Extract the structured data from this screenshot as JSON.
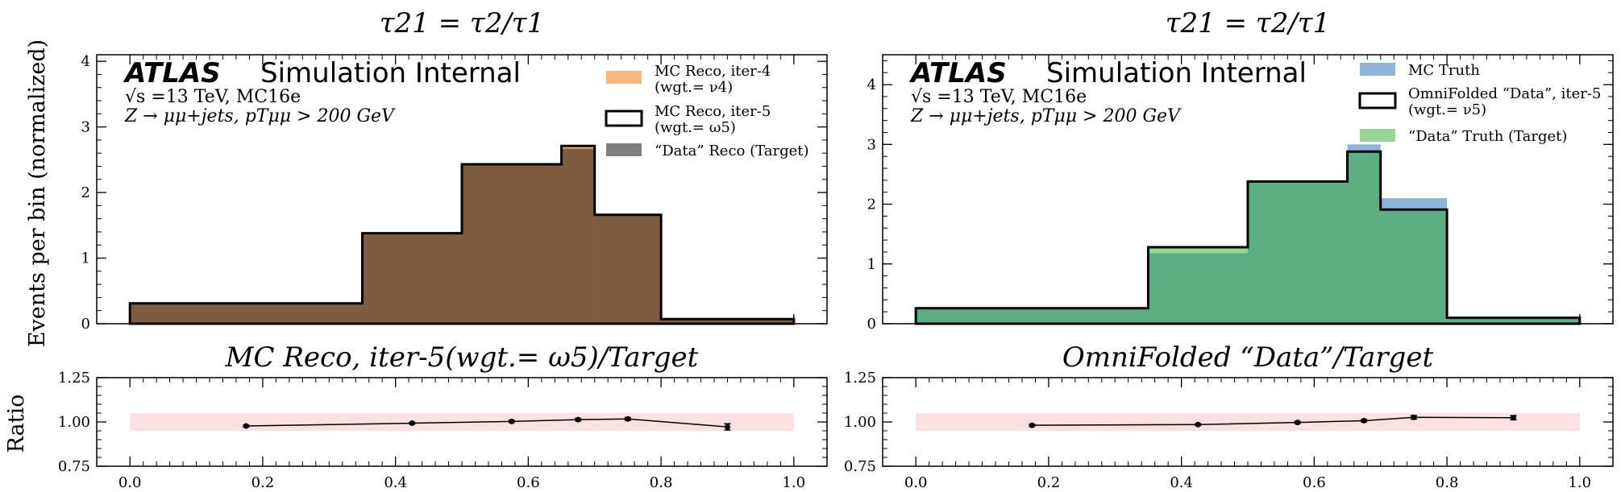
{
  "figure": {
    "ylabel_main": "Events per bin (normalized)",
    "ylabel_ratio": "Ratio"
  },
  "chart_data": [
    {
      "panel": "left-main",
      "type": "histogram",
      "title": "τ21 = τ2/τ1",
      "ylim": [
        0,
        4.1
      ],
      "yticks": [
        "0",
        "1",
        "2",
        "3",
        "4"
      ],
      "xlim": [
        -0.05,
        1.05
      ],
      "atlas": {
        "logo": "ATLAS",
        "label": "Simulation Internal",
        "line1": "√s =13 TeV, MC16e",
        "line2": "Z → μμ+jets, pTμμ > 200 GeV"
      },
      "bin_edges": [
        0.0,
        0.35,
        0.5,
        0.65,
        0.7,
        0.8,
        1.0
      ],
      "series": [
        {
          "name": "MC Reco, iter-4",
          "sub": "(wgt.= ν4)",
          "style": "fill",
          "color": "#f5b97e",
          "values": [
            0.31,
            1.38,
            2.43,
            2.71,
            1.66,
            0.07
          ]
        },
        {
          "name": "MC Reco, iter-5",
          "sub": "(wgt.= ω5)",
          "style": "step",
          "color": "#000000",
          "values": [
            0.31,
            1.38,
            2.43,
            2.71,
            1.66,
            0.07
          ]
        },
        {
          "name": "“Data” Reco (Target)",
          "sub": "",
          "style": "fill",
          "color": "#7f7f7f",
          "values": [
            0.31,
            1.38,
            2.43,
            2.67,
            1.66,
            0.07
          ]
        }
      ],
      "overlap_color": "#7f5c40"
    },
    {
      "panel": "right-main",
      "type": "histogram",
      "title": "τ21 = τ2/τ1",
      "ylim": [
        0,
        4.5
      ],
      "yticks": [
        "0",
        "1",
        "2",
        "3",
        "4"
      ],
      "xlim": [
        -0.05,
        1.05
      ],
      "atlas": {
        "logo": "ATLAS",
        "label": "Simulation Internal",
        "line1": "√s =13 TeV, MC16e",
        "line2": "Z → μμ+jets, pTμμ > 200 GeV"
      },
      "bin_edges": [
        0.0,
        0.35,
        0.5,
        0.65,
        0.7,
        0.8,
        1.0
      ],
      "series": [
        {
          "name": "MC Truth",
          "sub": "",
          "style": "fill",
          "color": "#8fb4da",
          "values": [
            0.26,
            1.18,
            2.36,
            3.0,
            2.1,
            0.1
          ]
        },
        {
          "name": "OmniFolded “Data”, iter-5",
          "sub": "(wgt.= ν5)",
          "style": "step",
          "color": "#000000",
          "values": [
            0.26,
            1.28,
            2.38,
            2.88,
            1.91,
            0.1
          ]
        },
        {
          "name": "“Data” Truth (Target)",
          "sub": "",
          "style": "fill",
          "color": "#99d499",
          "values": [
            0.26,
            1.28,
            2.38,
            2.88,
            1.91,
            0.1
          ]
        }
      ],
      "overlap_color": "#5cae83"
    },
    {
      "panel": "left-ratio",
      "type": "line",
      "title": "MC Reco, iter-5(wgt.= ω5)/Target",
      "ylim": [
        0.75,
        1.25
      ],
      "yticks": [
        "0.75",
        "1.00",
        "1.25"
      ],
      "xlim": [
        -0.05,
        1.05
      ],
      "xticks": [
        "0.0",
        "0.2",
        "0.4",
        "0.6",
        "0.8",
        "1.0"
      ],
      "band": [
        0.95,
        1.05
      ],
      "band_color": "#fde0e0",
      "x": [
        0.175,
        0.425,
        0.575,
        0.675,
        0.75,
        0.9
      ],
      "y": [
        0.977,
        0.993,
        1.003,
        1.013,
        1.017,
        0.972
      ],
      "yerr": [
        0.006,
        0.005,
        0.006,
        0.007,
        0.008,
        0.018
      ]
    },
    {
      "panel": "right-ratio",
      "type": "line",
      "title": "OmniFolded “Data”/Target",
      "ylim": [
        0.75,
        1.25
      ],
      "yticks": [
        "0.75",
        "1.00",
        "1.25"
      ],
      "xlim": [
        -0.05,
        1.05
      ],
      "xticks": [
        "0.0",
        "0.2",
        "0.4",
        "0.6",
        "0.8",
        "1.0"
      ],
      "band": [
        0.95,
        1.05
      ],
      "band_color": "#fde0e0",
      "x": [
        0.175,
        0.425,
        0.575,
        0.675,
        0.75,
        0.9
      ],
      "y": [
        0.981,
        0.985,
        0.997,
        1.007,
        1.026,
        1.024
      ],
      "yerr": [
        0.006,
        0.005,
        0.006,
        0.007,
        0.01,
        0.012
      ]
    }
  ]
}
